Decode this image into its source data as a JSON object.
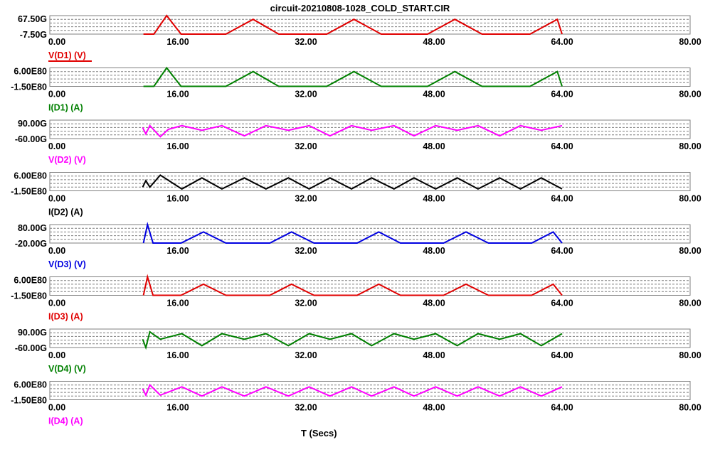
{
  "title": "circuit-20210808-1028_COLD_START.CIR",
  "x_axis_label": "T (Secs)",
  "colors": {
    "red": "#e00000",
    "green": "#008000",
    "magenta": "#ff00ff",
    "black": "#000000",
    "blue": "#0000e0",
    "grid": "#7f7f7f"
  },
  "chart_data": [
    {
      "type": "line",
      "series": [
        {
          "name": "V(D1) (V)",
          "color": "#e00000",
          "x": [
            11.7,
            13.0,
            14.6,
            16.4,
            22.0,
            25.4,
            28.6,
            34.6,
            38.0,
            41.4,
            47.2,
            50.6,
            54.0,
            60.0,
            63.4,
            64.0
          ],
          "y": [
            0,
            0,
            1,
            0,
            0,
            0.8,
            0,
            0,
            0.8,
            0,
            0,
            0.8,
            0,
            0,
            0.8,
            0
          ],
          "y_display": [
            -7.5,
            -7.5,
            67.5,
            -7.5,
            -7.5,
            52.5,
            -7.5,
            -7.5,
            52.5,
            -7.5,
            -7.5,
            52.5,
            -7.5,
            -7.5,
            52.5,
            -7.5
          ]
        }
      ],
      "ylim_labels": [
        "67.50G",
        "-7.50G"
      ],
      "xlim": [
        0,
        80
      ],
      "x_ticks": [
        "0.00",
        "16.00",
        "32.00",
        "48.00",
        "64.00",
        "80.00"
      ],
      "legend_underlined": true
    },
    {
      "type": "line",
      "series": [
        {
          "name": "I(D1) (A)",
          "color": "#008000",
          "x": [
            11.7,
            13.0,
            14.6,
            16.4,
            22.0,
            25.4,
            28.6,
            34.6,
            38.0,
            41.4,
            47.2,
            50.6,
            54.0,
            60.0,
            63.4,
            64.0
          ],
          "y": [
            0,
            0,
            1,
            0,
            0,
            0.8,
            0,
            0,
            0.8,
            0,
            0,
            0.8,
            0,
            0,
            0.8,
            0
          ],
          "y_display": [
            -1.5,
            -1.5,
            6.0,
            -1.5,
            -1.5,
            4.5,
            -1.5,
            -1.5,
            4.5,
            -1.5,
            -1.5,
            4.5,
            -1.5,
            -1.5,
            4.5,
            -1.5
          ]
        }
      ],
      "ylim_labels": [
        "6.00E80",
        "-1.50E80"
      ],
      "xlim": [
        0,
        80
      ],
      "x_ticks": [
        "0.00",
        "16.00",
        "32.00",
        "48.00",
        "64.00",
        "80.00"
      ]
    },
    {
      "type": "line",
      "series": [
        {
          "name": "V(D2) (V)",
          "color": "#ff00ff",
          "x": [
            11.6,
            12.0,
            12.5,
            13.8,
            14.8,
            16.5,
            19.0,
            21.5,
            24.3,
            27.0,
            29.8,
            32.4,
            35.0,
            37.7,
            40.2,
            43.0,
            45.5,
            48.2,
            50.9,
            53.5,
            56.2,
            58.8,
            61.4,
            64.0
          ],
          "y": [
            0.6,
            0.25,
            0.7,
            0.1,
            0.5,
            0.7,
            0.45,
            0.7,
            0.15,
            0.7,
            0.45,
            0.7,
            0.15,
            0.7,
            0.45,
            0.7,
            0.15,
            0.7,
            0.45,
            0.7,
            0.15,
            0.7,
            0.45,
            0.7
          ]
        }
      ],
      "ylim_labels": [
        "90.00G",
        "-60.00G"
      ],
      "xlim": [
        0,
        80
      ],
      "x_ticks": [
        "0.00",
        "16.00",
        "32.00",
        "48.00",
        "64.00",
        "80.00"
      ]
    },
    {
      "type": "line",
      "series": [
        {
          "name": "I(D2) (A)",
          "color": "#000000",
          "x": [
            11.6,
            12.0,
            12.5,
            13.8,
            16.5,
            19.0,
            21.5,
            24.3,
            27.0,
            29.8,
            32.4,
            35.0,
            37.7,
            40.2,
            43.0,
            45.5,
            48.2,
            50.9,
            53.5,
            56.2,
            58.8,
            61.4,
            64.0
          ],
          "y": [
            0.2,
            0.55,
            0.2,
            0.85,
            0.1,
            0.7,
            0.1,
            0.7,
            0.1,
            0.7,
            0.1,
            0.7,
            0.1,
            0.7,
            0.1,
            0.7,
            0.1,
            0.7,
            0.1,
            0.7,
            0.1,
            0.7,
            0.1
          ],
          "y_display_note": ""
        }
      ],
      "ylim_labels": [
        "6.00E80",
        "-1.50E80"
      ],
      "xlim": [
        0,
        80
      ],
      "x_ticks": [
        "0.00",
        "16.00",
        "32.00",
        "48.00",
        "64.00",
        "80.00"
      ]
    },
    {
      "type": "line",
      "series": [
        {
          "name": "V(D3) (V)",
          "color": "#0000e0",
          "x": [
            11.7,
            12.2,
            12.9,
            16.4,
            19.2,
            22.0,
            27.5,
            30.2,
            33.0,
            38.4,
            41.1,
            43.8,
            49.2,
            52.0,
            54.8,
            60.2,
            62.9,
            64.0
          ],
          "y": [
            0,
            1,
            0,
            0,
            0.6,
            0,
            0,
            0.6,
            0,
            0,
            0.6,
            0,
            0,
            0.6,
            0,
            0,
            0.6,
            0
          ]
        }
      ],
      "ylim_labels": [
        "80.00G",
        "-20.00G"
      ],
      "xlim": [
        0,
        80
      ],
      "x_ticks": [
        "0.00",
        "16.00",
        "32.00",
        "48.00",
        "64.00",
        "80.00"
      ]
    },
    {
      "type": "line",
      "series": [
        {
          "name": "I(D3) (A)",
          "color": "#e00000",
          "x": [
            11.7,
            12.2,
            12.9,
            16.4,
            19.2,
            22.0,
            27.5,
            30.2,
            33.0,
            38.4,
            41.1,
            43.8,
            49.2,
            52.0,
            54.8,
            60.2,
            62.9,
            64.0
          ],
          "y": [
            0,
            1,
            0,
            0,
            0.6,
            0,
            0,
            0.6,
            0,
            0,
            0.6,
            0,
            0,
            0.6,
            0,
            0,
            0.6,
            0
          ]
        }
      ],
      "ylim_labels": [
        "6.00E80",
        "-1.50E80"
      ],
      "xlim": [
        0,
        80
      ],
      "x_ticks": [
        "0.00",
        "16.00",
        "32.00",
        "48.00",
        "64.00",
        "80.00"
      ]
    },
    {
      "type": "line",
      "series": [
        {
          "name": "V(D4) (V)",
          "color": "#008000",
          "x": [
            11.6,
            12.0,
            12.5,
            13.8,
            16.5,
            19.0,
            21.5,
            24.3,
            27.0,
            29.8,
            32.4,
            35.0,
            37.7,
            40.2,
            43.0,
            45.5,
            48.2,
            50.9,
            53.5,
            56.2,
            58.8,
            61.4,
            64.0
          ],
          "y": [
            0.45,
            0.0,
            0.85,
            0.45,
            0.75,
            0.1,
            0.75,
            0.45,
            0.75,
            0.1,
            0.75,
            0.45,
            0.75,
            0.1,
            0.75,
            0.45,
            0.75,
            0.1,
            0.75,
            0.45,
            0.75,
            0.1,
            0.75
          ]
        }
      ],
      "ylim_labels": [
        "90.00G",
        "-60.00G"
      ],
      "xlim": [
        0,
        80
      ],
      "x_ticks": [
        "0.00",
        "16.00",
        "32.00",
        "48.00",
        "64.00",
        "80.00"
      ]
    },
    {
      "type": "line",
      "series": [
        {
          "name": "I(D4) (A)",
          "color": "#ff00ff",
          "x": [
            11.6,
            12.0,
            12.5,
            13.8,
            16.5,
            19.0,
            21.5,
            24.3,
            27.0,
            29.8,
            32.4,
            35.0,
            37.7,
            40.2,
            43.0,
            45.5,
            48.2,
            50.9,
            53.5,
            56.2,
            58.8,
            61.4,
            64.0
          ],
          "y": [
            0.6,
            0.25,
            0.8,
            0.25,
            0.7,
            0.2,
            0.7,
            0.2,
            0.7,
            0.2,
            0.7,
            0.2,
            0.7,
            0.2,
            0.7,
            0.2,
            0.7,
            0.2,
            0.7,
            0.2,
            0.7,
            0.2,
            0.7
          ]
        }
      ],
      "ylim_labels": [
        "6.00E80",
        "-1.50E80"
      ],
      "xlim": [
        0,
        80
      ],
      "x_ticks": [
        "0.00",
        "16.00",
        "32.00",
        "48.00",
        "64.00",
        "80.00"
      ]
    }
  ]
}
